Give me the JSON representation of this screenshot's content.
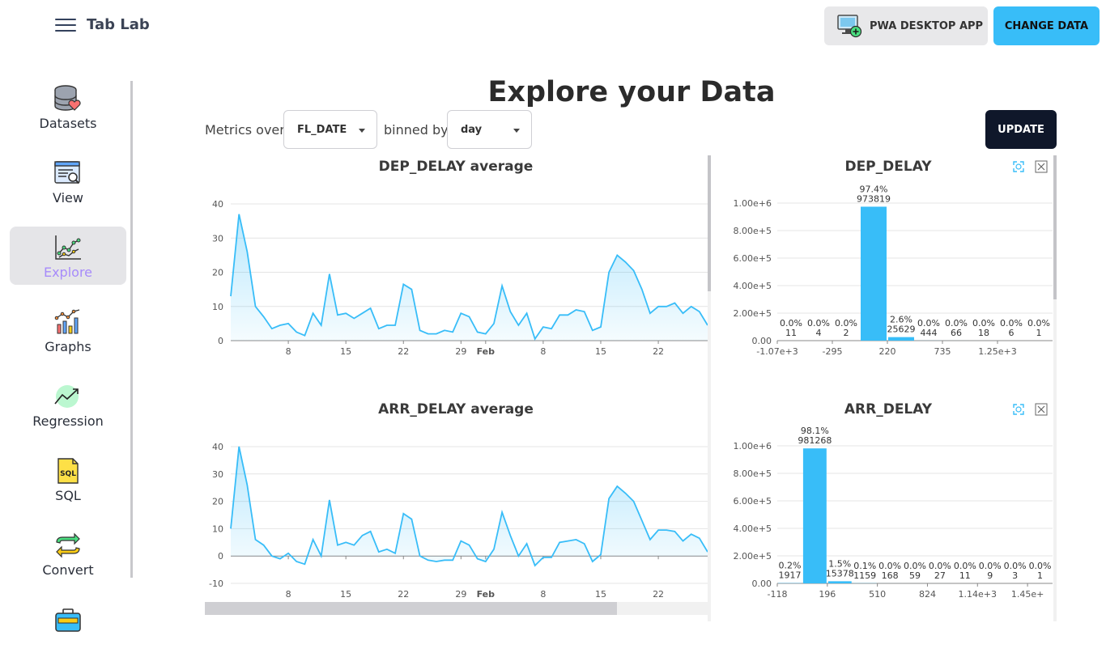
{
  "header": {
    "app_title": "Tab Lab",
    "menu_icon": "hamburger-menu-icon",
    "pwa_label": "PWA DESKTOP APP",
    "pwa_icon": "desktop-add-icon",
    "change_label": "CHANGE DATA",
    "accent": "#38bdf8"
  },
  "sidebar": {
    "items": [
      {
        "label": "Datasets",
        "icon": "database-heart-icon"
      },
      {
        "label": "View",
        "icon": "window-search-icon"
      },
      {
        "label": "Explore",
        "icon": "line-chart-icon",
        "active": true
      },
      {
        "label": "Graphs",
        "icon": "bar-chart-icon"
      },
      {
        "label": "Regression",
        "icon": "trend-arrow-icon"
      },
      {
        "label": "SQL",
        "icon": "sql-file-icon"
      },
      {
        "label": "Convert",
        "icon": "convert-arrows-icon"
      },
      {
        "label": "",
        "icon": "toolbox-icon"
      }
    ],
    "active_color": "#a78bfa"
  },
  "main": {
    "title": "Explore your Data",
    "metrics_label": "Metrics over",
    "metric_field": "FL_DATE",
    "binned_label": "binned by",
    "bin_value": "day",
    "update_label": "UPDATE"
  },
  "chart_data": [
    {
      "type": "area",
      "title": "DEP_DELAY average",
      "ylim": [
        0,
        40
      ],
      "yticks": [
        0,
        10,
        20,
        30,
        40
      ],
      "x_tick_labels": [
        "8",
        "15",
        "22",
        "29",
        "Feb",
        "8",
        "15",
        "22"
      ],
      "values": [
        13,
        37,
        26,
        10,
        7,
        3.5,
        4.5,
        5,
        2.5,
        1.5,
        8,
        4.5,
        19.5,
        7.5,
        8,
        6.5,
        8,
        9.5,
        3.5,
        4.5,
        4.5,
        16.5,
        15,
        3,
        2,
        2,
        3,
        2.5,
        8,
        7,
        2.5,
        2,
        5,
        16,
        8.5,
        4.5,
        8,
        0.5,
        4,
        3.5,
        7.5,
        7.5,
        9,
        8.5,
        3,
        4,
        20,
        25,
        23,
        20.5,
        15,
        8,
        10,
        10,
        11,
        8,
        10,
        8.5,
        4.5
      ],
      "color": "#38bdf8"
    },
    {
      "type": "bar",
      "title": "DEP_DELAY",
      "yticks": [
        "0.00",
        "2.00e+5",
        "4.00e+5",
        "6.00e+5",
        "8.00e+5",
        "1.00e+6"
      ],
      "x_tick_labels": [
        "-1.07e+3",
        "-295",
        "220",
        "735",
        "1.25e+3"
      ],
      "values": [
        11,
        4,
        2,
        973819,
        25629,
        444,
        66,
        18,
        6,
        1
      ],
      "percents": [
        "0.0%",
        "0.0%",
        "0.0%",
        "97.4%",
        "2.6%",
        "0.0%",
        "0.0%",
        "0.0%",
        "0.0%",
        "0.0%"
      ],
      "color": "#38bdf8"
    },
    {
      "type": "area",
      "title": "ARR_DELAY average",
      "ylim": [
        -10,
        40
      ],
      "yticks": [
        -10,
        0,
        10,
        20,
        30,
        40
      ],
      "x_tick_labels": [
        "8",
        "15",
        "22",
        "29",
        "Feb",
        "8",
        "15",
        "22"
      ],
      "values": [
        10,
        40,
        26,
        6,
        4,
        0,
        -1,
        1,
        -2,
        -3,
        6,
        0,
        20.5,
        4,
        5,
        4,
        7.5,
        9,
        1.5,
        2.5,
        1,
        15.5,
        13.5,
        0,
        -1.5,
        -2,
        -1.5,
        -1.5,
        5.5,
        4,
        -1,
        -2,
        2.5,
        16,
        7.5,
        0,
        4.5,
        -3.5,
        -0.5,
        -0.5,
        5,
        5.5,
        6,
        4.5,
        -2,
        0.5,
        21,
        25.5,
        23,
        20,
        13,
        6,
        9.5,
        9.5,
        9,
        5.5,
        8,
        6.5,
        1.5
      ],
      "color": "#38bdf8"
    },
    {
      "type": "bar",
      "title": "ARR_DELAY",
      "yticks": [
        "0.00",
        "2.00e+5",
        "4.00e+5",
        "6.00e+5",
        "8.00e+5",
        "1.00e+6"
      ],
      "x_tick_labels": [
        "-118",
        "196",
        "510",
        "824",
        "1.14e+3",
        "1.45e+"
      ],
      "values": [
        1917,
        981268,
        15378,
        1159,
        168,
        59,
        27,
        11,
        9,
        3,
        1
      ],
      "percents": [
        "0.2%",
        "98.1%",
        "1.5%",
        "0.1%",
        "0.0%",
        "0.0%",
        "0.0%",
        "0.0%",
        "0.0%",
        "0.0%",
        "0.0%"
      ],
      "color": "#38bdf8"
    }
  ]
}
